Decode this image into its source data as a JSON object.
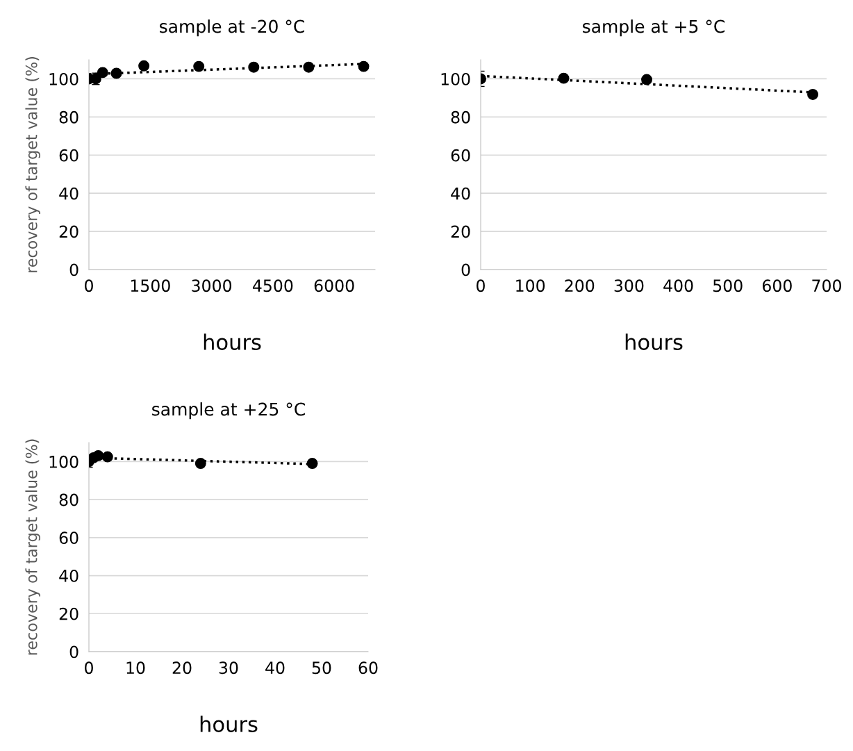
{
  "chart_data": [
    {
      "type": "scatter",
      "title": "sample at -20 °C",
      "xlabel": "hours",
      "ylabel": "recovery of target value (%)",
      "xlim": [
        0,
        7000
      ],
      "xticks": [
        0,
        1500,
        3000,
        4500,
        6000
      ],
      "ylim": [
        0,
        110
      ],
      "yticks": [
        0,
        20,
        40,
        60,
        80,
        100
      ],
      "grid": "y",
      "legend": false,
      "series": [
        {
          "color": "#000000",
          "marker": "circle",
          "x": [
            0,
            168,
            336,
            672,
            1344,
            2688,
            4032,
            5376,
            6720
          ],
          "values": [
            100,
            100,
            103.3,
            102.9,
            106.8,
            106.5,
            106.1,
            106.1,
            106.5
          ],
          "errors": [
            null,
            3,
            null,
            null,
            null,
            null,
            null,
            null,
            null
          ]
        },
        {
          "type": "line",
          "color": "#000000",
          "line_style": "dotted",
          "marker": "none",
          "x": [
            0,
            6720
          ],
          "values": [
            102.4,
            107.8
          ]
        }
      ]
    },
    {
      "type": "scatter",
      "title": "sample at +5 °C",
      "xlabel": "hours",
      "xlim": [
        0,
        700
      ],
      "xticks": [
        0,
        100,
        200,
        300,
        400,
        500,
        600,
        700
      ],
      "ylim": [
        0,
        110
      ],
      "yticks": [
        0,
        20,
        40,
        60,
        80,
        100
      ],
      "grid": "y",
      "legend": false,
      "series": [
        {
          "color": "#000000",
          "marker": "circle",
          "x": [
            0,
            168,
            336,
            672
          ],
          "values": [
            100,
            100.3,
            99.6,
            91.8
          ],
          "errors": [
            4,
            null,
            null,
            null
          ]
        },
        {
          "type": "line",
          "color": "#000000",
          "line_style": "dotted",
          "marker": "none",
          "x": [
            0,
            672
          ],
          "values": [
            101.5,
            92.9
          ]
        }
      ]
    },
    {
      "type": "scatter",
      "title": "sample at +25 °C",
      "xlabel": "hours",
      "ylabel": "recovery of target value (%)",
      "xlim": [
        0,
        60
      ],
      "xticks": [
        0,
        10,
        20,
        30,
        40,
        50,
        60
      ],
      "ylim": [
        0,
        110
      ],
      "yticks": [
        0,
        20,
        40,
        60,
        80,
        100
      ],
      "grid": "y",
      "legend": false,
      "series": [
        {
          "color": "#000000",
          "marker": "circle",
          "x": [
            0,
            1,
            2,
            4,
            24,
            48
          ],
          "values": [
            100,
            102,
            103.1,
            102.5,
            99,
            99
          ],
          "errors": [
            3,
            null,
            null,
            null,
            null,
            null
          ]
        },
        {
          "type": "line",
          "color": "#000000",
          "line_style": "dotted",
          "marker": "none",
          "x": [
            0,
            48
          ],
          "values": [
            102.0,
            98.7
          ]
        }
      ]
    }
  ]
}
